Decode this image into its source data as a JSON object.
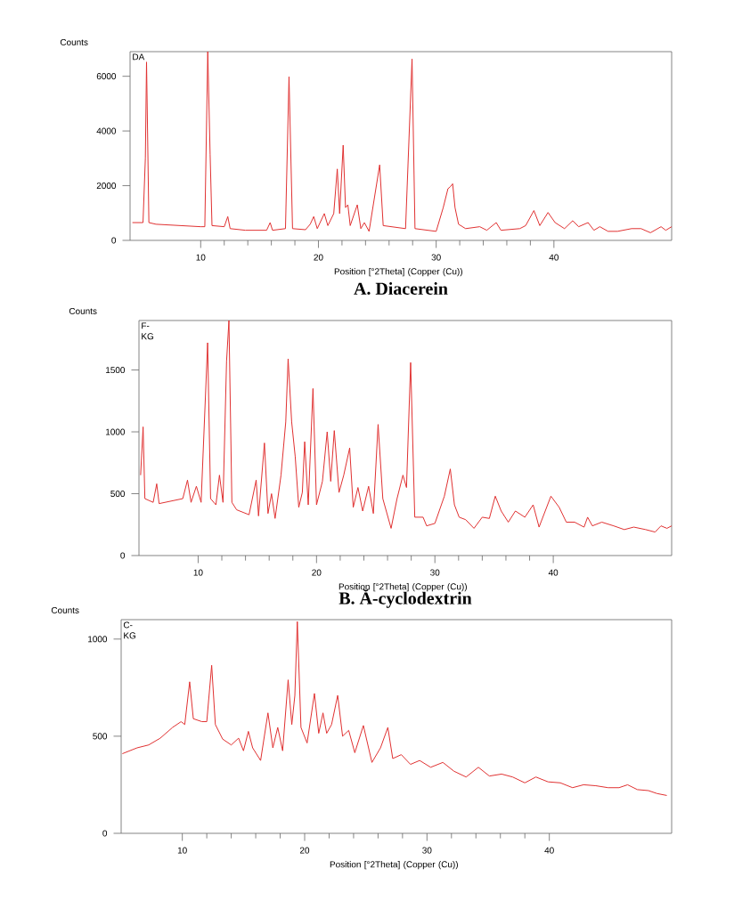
{
  "chart_data": [
    {
      "type": "line",
      "title": "A. Diacerein",
      "xlabel": "Position [°2Theta] (Copper (Cu))",
      "ylabel": "Counts",
      "annotations": [
        "DA"
      ],
      "color": "#e03030",
      "xlim": [
        4,
        50
      ],
      "ylim": [
        0,
        6900
      ],
      "xticks": [
        10,
        20,
        30,
        40
      ],
      "yticks": [
        0,
        2000,
        4000,
        6000
      ],
      "x": [
        4.2,
        5.1,
        5.3,
        5.4,
        5.6,
        6.2,
        10,
        10.35,
        10.6,
        10.8,
        10.96,
        12,
        12.3,
        12.5,
        13.8,
        15.6,
        15.9,
        16.1,
        17.2,
        17.5,
        17.8,
        18.9,
        19.3,
        19.6,
        19.9,
        20.5,
        20.8,
        21.3,
        21.6,
        21.8,
        22.1,
        22.3,
        22.5,
        22.7,
        23.3,
        23.6,
        23.9,
        24.3,
        25.2,
        25.5,
        27.4,
        27.95,
        28.2,
        30,
        30.6,
        31,
        31.2,
        31.4,
        31.6,
        31.9,
        32.5,
        33.7,
        34.3,
        35.1,
        35.5,
        37.1,
        37.6,
        38.3,
        38.8,
        39.5,
        40.1,
        40.9,
        41.6,
        42.1,
        42.9,
        43.4,
        43.9,
        44.6,
        45.4,
        46.6,
        47.4,
        48.2,
        49.1,
        49.5,
        50
      ],
      "values": [
        650,
        650,
        3000,
        6520,
        650,
        590,
        500,
        500,
        6900,
        3150,
        540,
        500,
        870,
        430,
        370,
        370,
        650,
        370,
        430,
        5980,
        430,
        390,
        590,
        870,
        430,
        980,
        540,
        980,
        2610,
        980,
        3480,
        1200,
        1300,
        540,
        1300,
        430,
        650,
        330,
        2760,
        540,
        430,
        6630,
        430,
        330,
        1200,
        1890,
        1960,
        2070,
        1200,
        590,
        430,
        500,
        370,
        650,
        370,
        430,
        540,
        1090,
        540,
        1020,
        650,
        430,
        720,
        500,
        650,
        370,
        500,
        330,
        330,
        430,
        430,
        280,
        500,
        370,
        500
      ]
    },
    {
      "type": "line",
      "title": "B. Ă-cyclodextrin",
      "xlabel": "Position [°2Theta] (Copper (Cu))",
      "ylabel": "Counts",
      "annotations": [
        "F-KG"
      ],
      "color": "#e03030",
      "xlim": [
        5,
        50
      ],
      "ylim": [
        0,
        1900
      ],
      "xticks": [
        10,
        20,
        30,
        40
      ],
      "yticks": [
        0,
        500,
        1000,
        1500
      ],
      "x": [
        5.14,
        5.35,
        5.5,
        6.2,
        6.5,
        6.7,
        8.7,
        9.1,
        9.4,
        9.85,
        10.25,
        10.8,
        11.05,
        11.5,
        11.8,
        12.1,
        12.4,
        12.6,
        12.85,
        13.25,
        14.3,
        14.9,
        15.1,
        15.6,
        15.9,
        16.2,
        16.5,
        17,
        17.4,
        17.6,
        17.9,
        18.2,
        18.5,
        18.8,
        19.0,
        19.3,
        19.7,
        20.0,
        20.5,
        20.9,
        21.2,
        21.5,
        21.9,
        22.3,
        22.8,
        23.1,
        23.5,
        23.9,
        24.4,
        24.8,
        25.2,
        25.6,
        26.3,
        26.8,
        27.3,
        27.6,
        27.95,
        28.3,
        29.0,
        29.3,
        30,
        30.8,
        31.3,
        31.65,
        32.05,
        32.6,
        33.3,
        34.0,
        34.6,
        35.1,
        35.6,
        36.2,
        36.8,
        37.6,
        38.3,
        38.8,
        39.8,
        40.5,
        41.1,
        41.8,
        42.6,
        42.9,
        43.3,
        44.1,
        45.1,
        46.0,
        46.8,
        47.8,
        48.6,
        49.1,
        49.6,
        50
      ],
      "values": [
        650,
        1040,
        460,
        430,
        580,
        420,
        460,
        610,
        430,
        560,
        430,
        1720,
        460,
        410,
        650,
        430,
        1570,
        1900,
        430,
        370,
        330,
        610,
        320,
        910,
        340,
        500,
        300,
        650,
        1080,
        1590,
        1080,
        800,
        390,
        510,
        920,
        410,
        1350,
        410,
        600,
        1000,
        600,
        1010,
        510,
        650,
        870,
        390,
        550,
        360,
        560,
        340,
        1060,
        460,
        220,
        460,
        650,
        550,
        1560,
        310,
        310,
        240,
        260,
        480,
        700,
        410,
        310,
        290,
        220,
        310,
        300,
        480,
        360,
        270,
        360,
        310,
        410,
        230,
        480,
        390,
        270,
        270,
        230,
        310,
        240,
        270,
        240,
        210,
        230,
        210,
        190,
        240,
        220,
        240
      ]
    },
    {
      "type": "line",
      "xlabel": "Position [°2Theta] (Copper (Cu))",
      "ylabel": "Counts",
      "annotations": [
        "C-KG"
      ],
      "color": "#e03030",
      "xlim": [
        5,
        50
      ],
      "ylim": [
        0,
        1100
      ],
      "xticks": [
        10,
        20,
        30,
        40
      ],
      "yticks": [
        0,
        500,
        1000
      ],
      "x": [
        5.1,
        6.3,
        7.25,
        8.2,
        9.2,
        9.9,
        10.2,
        10.6,
        10.9,
        11.6,
        12.0,
        12.4,
        12.7,
        13.3,
        14.0,
        14.6,
        15.0,
        15.4,
        15.75,
        16.4,
        17.0,
        17.4,
        17.8,
        18.2,
        18.65,
        18.95,
        19.2,
        19.4,
        19.7,
        20.2,
        20.8,
        21.15,
        21.5,
        21.8,
        22.2,
        22.7,
        23.1,
        23.6,
        24.1,
        24.8,
        25.5,
        26.2,
        26.8,
        27.2,
        27.9,
        28.65,
        29.4,
        30.3,
        31.3,
        32.2,
        33.2,
        34.2,
        35.1,
        36.1,
        37.0,
        38.0,
        38.9,
        39.9,
        40.9,
        41.9,
        42.8,
        43.8,
        44.8,
        45.7,
        46.4,
        47.2,
        48.1,
        48.8,
        49.6
      ],
      "values": [
        410,
        440,
        455,
        490,
        545,
        575,
        560,
        780,
        590,
        575,
        575,
        865,
        560,
        485,
        455,
        490,
        425,
        525,
        440,
        375,
        620,
        440,
        545,
        425,
        790,
        560,
        710,
        1090,
        545,
        465,
        720,
        515,
        620,
        515,
        560,
        710,
        500,
        530,
        415,
        555,
        365,
        440,
        545,
        385,
        405,
        355,
        375,
        340,
        365,
        320,
        290,
        340,
        295,
        305,
        290,
        260,
        290,
        265,
        260,
        235,
        250,
        245,
        235,
        235,
        250,
        225,
        220,
        205,
        195
      ]
    }
  ]
}
